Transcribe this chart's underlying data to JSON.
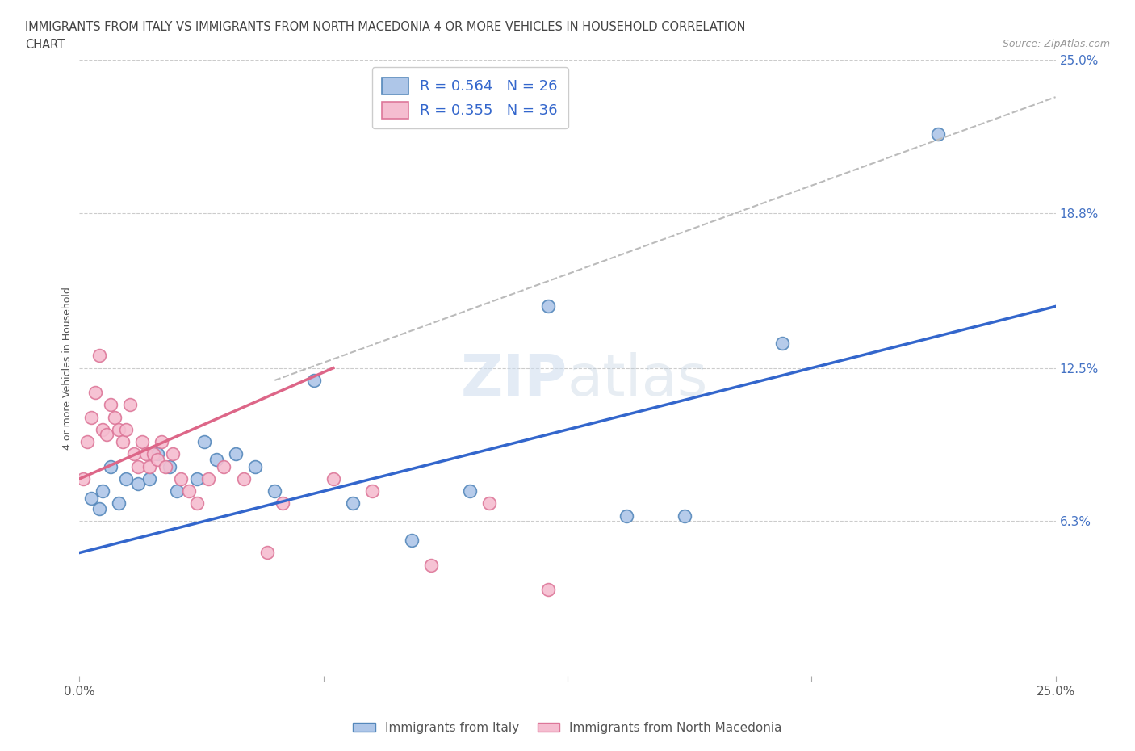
{
  "title_line1": "IMMIGRANTS FROM ITALY VS IMMIGRANTS FROM NORTH MACEDONIA 4 OR MORE VEHICLES IN HOUSEHOLD CORRELATION",
  "title_line2": "CHART",
  "source_text": "Source: ZipAtlas.com",
  "ylabel": "4 or more Vehicles in Household",
  "xlim": [
    0.0,
    25.0
  ],
  "ylim": [
    0.0,
    25.0
  ],
  "italy_color": "#aec6e8",
  "italy_edge": "#5588bb",
  "macedonia_color": "#f5bdd0",
  "macedonia_edge": "#dd7799",
  "italy_R": 0.564,
  "italy_N": 26,
  "macedonia_R": 0.355,
  "macedonia_N": 36,
  "italy_line_color": "#3366cc",
  "macedonia_line_color": "#dd6688",
  "dash_line_color": "#bbbbbb",
  "background_color": "#ffffff",
  "italy_scatter_x": [
    0.3,
    0.5,
    0.6,
    0.8,
    1.0,
    1.2,
    1.5,
    1.8,
    2.0,
    2.3,
    2.5,
    3.0,
    3.2,
    3.5,
    4.0,
    4.5,
    5.0,
    6.0,
    7.0,
    8.5,
    10.0,
    12.0,
    14.0,
    15.5,
    18.0,
    22.0
  ],
  "italy_scatter_y": [
    7.2,
    6.8,
    7.5,
    8.5,
    7.0,
    8.0,
    7.8,
    8.0,
    9.0,
    8.5,
    7.5,
    8.0,
    9.5,
    8.8,
    9.0,
    8.5,
    7.5,
    12.0,
    7.0,
    5.5,
    7.5,
    15.0,
    6.5,
    6.5,
    13.5,
    22.0
  ],
  "macedonia_scatter_x": [
    0.1,
    0.2,
    0.3,
    0.4,
    0.5,
    0.6,
    0.7,
    0.8,
    0.9,
    1.0,
    1.1,
    1.2,
    1.3,
    1.4,
    1.5,
    1.6,
    1.7,
    1.8,
    1.9,
    2.0,
    2.1,
    2.2,
    2.4,
    2.6,
    2.8,
    3.0,
    3.3,
    3.7,
    4.2,
    4.8,
    5.2,
    6.5,
    7.5,
    9.0,
    10.5,
    12.0
  ],
  "macedonia_scatter_y": [
    8.0,
    9.5,
    10.5,
    11.5,
    13.0,
    10.0,
    9.8,
    11.0,
    10.5,
    10.0,
    9.5,
    10.0,
    11.0,
    9.0,
    8.5,
    9.5,
    9.0,
    8.5,
    9.0,
    8.8,
    9.5,
    8.5,
    9.0,
    8.0,
    7.5,
    7.0,
    8.0,
    8.5,
    8.0,
    5.0,
    7.0,
    8.0,
    7.5,
    4.5,
    7.0,
    3.5
  ],
  "italy_line_x0": 0.0,
  "italy_line_x1": 25.0,
  "italy_line_y0": 5.0,
  "italy_line_y1": 15.0,
  "mac_solid_x0": 0.0,
  "mac_solid_x1": 6.5,
  "mac_solid_y0": 8.0,
  "mac_solid_y1": 12.5,
  "mac_dash_x0": 5.0,
  "mac_dash_x1": 25.0,
  "mac_dash_y0": 12.0,
  "mac_dash_y1": 23.5
}
